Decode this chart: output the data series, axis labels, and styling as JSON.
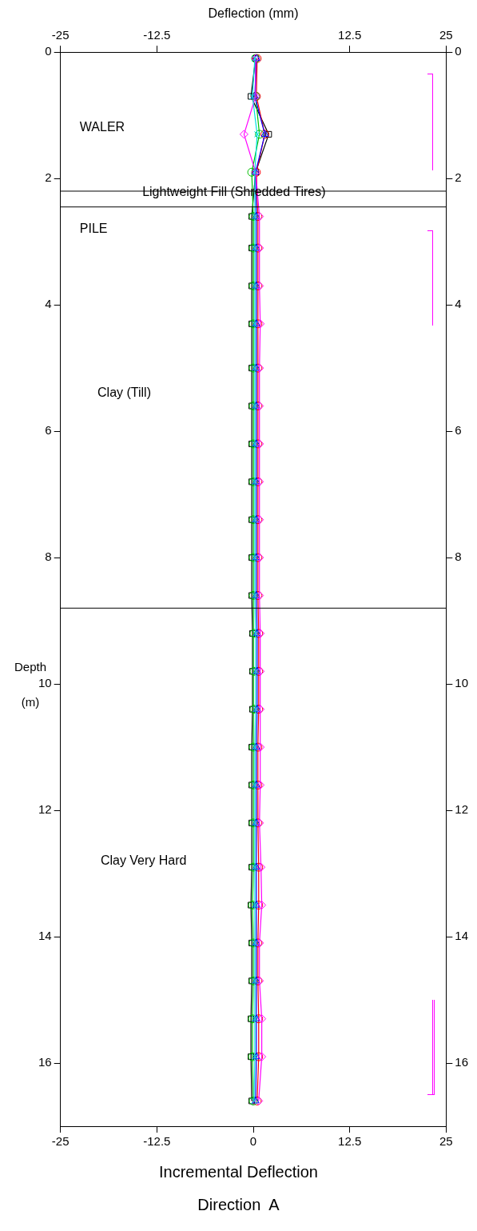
{
  "chart_data": {
    "type": "line",
    "title": "Incremental Deflection",
    "subtitle": "Direction  A",
    "x2label": "Deflection (mm)",
    "ylabel": "Depth (m)",
    "xlim": [
      -25,
      25
    ],
    "xticks": [
      -25,
      -12.5,
      0,
      12.5,
      25
    ],
    "x2lim": [
      -25,
      25
    ],
    "x2ticks": [
      -25,
      -12.5,
      12.5,
      25
    ],
    "ylim": [
      17,
      0
    ],
    "yticks": [
      0,
      2,
      4,
      6,
      8,
      10,
      12,
      14,
      16
    ],
    "y2lim": [
      17,
      0
    ],
    "y2ticks": [
      0,
      2,
      4,
      6,
      8,
      10,
      12,
      14,
      16
    ],
    "grid": false,
    "legend": false,
    "line_style": "solid",
    "series": [
      {
        "color": "#000000",
        "marker": "square",
        "x": [
          0.3,
          -0.3,
          2.0,
          0.3,
          -0.2,
          -0.2,
          -0.2,
          -0.2,
          -0.2,
          -0.2,
          -0.2,
          -0.2,
          -0.2,
          -0.2,
          -0.2,
          -0.1,
          -0.1,
          -0.1,
          -0.2,
          -0.2,
          -0.2,
          -0.2,
          -0.3,
          -0.2,
          -0.2,
          -0.3,
          -0.3,
          -0.2
        ],
        "values": [
          0.1,
          0.7,
          1.3,
          1.9,
          2.6,
          3.1,
          3.7,
          4.3,
          5.0,
          5.6,
          6.2,
          6.8,
          7.4,
          8.0,
          8.6,
          9.2,
          9.8,
          10.4,
          11.0,
          11.6,
          12.2,
          12.9,
          13.5,
          14.1,
          14.7,
          15.3,
          15.9,
          16.6
        ]
      },
      {
        "color": "#ff0000",
        "marker": "circle",
        "x": [
          0.5,
          0.4,
          1.5,
          0.4,
          0.6,
          0.6,
          0.6,
          0.6,
          0.6,
          0.6,
          0.6,
          0.6,
          0.6,
          0.6,
          0.6,
          0.7,
          0.7,
          0.7,
          0.6,
          0.6,
          0.6,
          0.7,
          0.7,
          0.6,
          0.6,
          0.7,
          0.7,
          0.5
        ],
        "values": [
          0.1,
          0.7,
          1.3,
          1.9,
          2.6,
          3.1,
          3.7,
          4.3,
          5.0,
          5.6,
          6.2,
          6.8,
          7.4,
          8.0,
          8.6,
          9.2,
          9.8,
          10.4,
          11.0,
          11.6,
          12.2,
          12.9,
          13.5,
          14.1,
          14.7,
          15.3,
          15.9,
          16.6
        ]
      },
      {
        "color": "#00c000",
        "marker": "circle",
        "x": [
          0.3,
          0.3,
          0.8,
          -0.2,
          0.0,
          0.0,
          0.0,
          0.0,
          0.0,
          0.0,
          0.0,
          0.0,
          0.0,
          0.0,
          0.0,
          0.1,
          0.1,
          0.1,
          0.0,
          0.0,
          0.0,
          0.0,
          -0.1,
          0.0,
          0.0,
          -0.1,
          -0.1,
          0.0
        ],
        "values": [
          0.1,
          0.7,
          1.3,
          1.9,
          2.6,
          3.1,
          3.7,
          4.3,
          5.0,
          5.6,
          6.2,
          6.8,
          7.4,
          8.0,
          8.6,
          9.2,
          9.8,
          10.4,
          11.0,
          11.6,
          12.2,
          12.9,
          13.5,
          14.1,
          14.7,
          15.3,
          15.9,
          16.6
        ]
      },
      {
        "color": "#0000ff",
        "marker": "triangle",
        "x": [
          0.4,
          0.2,
          1.5,
          0.3,
          0.4,
          0.4,
          0.4,
          0.4,
          0.4,
          0.4,
          0.4,
          0.4,
          0.4,
          0.4,
          0.4,
          0.5,
          0.5,
          0.5,
          0.4,
          0.4,
          0.4,
          0.4,
          0.4,
          0.4,
          0.4,
          0.4,
          0.4,
          0.3
        ],
        "values": [
          0.1,
          0.7,
          1.3,
          1.9,
          2.6,
          3.1,
          3.7,
          4.3,
          5.0,
          5.6,
          6.2,
          6.8,
          7.4,
          8.0,
          8.6,
          9.2,
          9.8,
          10.4,
          11.0,
          11.6,
          12.2,
          12.9,
          13.5,
          14.1,
          14.7,
          15.3,
          15.9,
          16.6
        ]
      },
      {
        "color": "#ff00ff",
        "marker": "diamond",
        "x": [
          0.3,
          0.3,
          -1.2,
          0.3,
          0.8,
          0.8,
          0.8,
          0.9,
          0.8,
          0.8,
          0.8,
          0.8,
          0.8,
          0.8,
          0.8,
          0.9,
          0.9,
          0.9,
          0.9,
          0.9,
          0.8,
          1.0,
          1.1,
          0.8,
          0.8,
          1.1,
          1.1,
          0.7
        ],
        "values": [
          0.1,
          0.7,
          1.3,
          1.9,
          2.6,
          3.1,
          3.7,
          4.3,
          5.0,
          5.6,
          6.2,
          6.8,
          7.4,
          8.0,
          8.6,
          9.2,
          9.8,
          10.4,
          11.0,
          11.6,
          12.2,
          12.9,
          13.5,
          14.1,
          14.7,
          15.3,
          15.9,
          16.6
        ]
      },
      {
        "color": "#00e0e0",
        "marker": "cross",
        "x": [
          0.2,
          -0.1,
          0.5,
          0.2,
          0.2,
          0.2,
          0.2,
          0.2,
          0.2,
          0.2,
          0.2,
          0.2,
          0.2,
          0.2,
          0.2,
          0.3,
          0.3,
          0.3,
          0.2,
          0.2,
          0.2,
          0.2,
          0.2,
          0.2,
          0.2,
          0.2,
          0.2,
          0.1
        ],
        "values": [
          0.1,
          0.7,
          1.3,
          1.9,
          2.6,
          3.1,
          3.7,
          4.3,
          5.0,
          5.6,
          6.2,
          6.8,
          7.4,
          8.0,
          8.6,
          9.2,
          9.8,
          10.4,
          11.0,
          11.6,
          12.2,
          12.9,
          13.5,
          14.1,
          14.7,
          15.3,
          15.9,
          16.6
        ]
      }
    ],
    "ref_lines": [
      {
        "axis": "y",
        "value": 2.2,
        "label": "Lightweight Fill (Shredded Tires)",
        "color": "#000000"
      },
      {
        "axis": "y",
        "value": 2.45,
        "color": "#000000"
      },
      {
        "axis": "y",
        "value": 8.8,
        "color": "#000000"
      }
    ],
    "annotations": [
      "WALER",
      "PILE",
      "Clay (Till)",
      "Clay Very Hard"
    ]
  }
}
